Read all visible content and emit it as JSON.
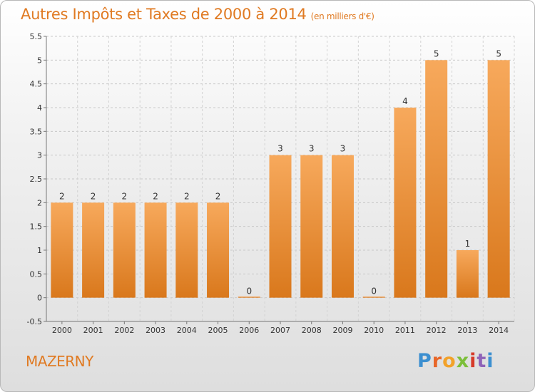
{
  "title": {
    "main": "Autres Impôts et Taxes de 2000 à 2014",
    "unit": "(en milliers d'€)"
  },
  "footer": {
    "city": "MAZERNY",
    "brand_letters": [
      "P",
      "r",
      "o",
      "x",
      "i",
      "t",
      "i"
    ]
  },
  "colors": {
    "bar_light": "#f7a95c",
    "bar_dark": "#d9781c",
    "text_orange": "#e07a22",
    "brand": [
      "#3c8fd0",
      "#e8672a",
      "#f2a22a",
      "#7cbf3a",
      "#d63a2a",
      "#8f63b8",
      "#3c8fd0"
    ]
  },
  "chart_data": {
    "type": "bar",
    "title": "Autres Impôts et Taxes de 2000 à 2014",
    "ylabel": "",
    "xlabel": "",
    "categories": [
      "2000",
      "2001",
      "2002",
      "2003",
      "2004",
      "2005",
      "2006",
      "2007",
      "2008",
      "2009",
      "2010",
      "2011",
      "2012",
      "2013",
      "2014"
    ],
    "values": [
      2,
      2,
      2,
      2,
      2,
      2,
      0,
      3,
      3,
      3,
      0,
      4,
      5,
      1,
      5
    ],
    "value_labels": [
      "2",
      "2",
      "2",
      "2",
      "2",
      "2",
      "0",
      "3",
      "3",
      "3",
      "0",
      "4",
      "5",
      "1",
      "5"
    ],
    "ylim": [
      -0.5,
      5.5
    ],
    "yticks": [
      -0.5,
      0,
      0.5,
      1,
      1.5,
      2,
      2.5,
      3,
      3.5,
      4,
      4.5,
      5,
      5.5
    ],
    "ytick_labels": [
      "-0.5",
      "0",
      "0.5",
      "1",
      "1.5",
      "2",
      "2.5",
      "3",
      "3.5",
      "4",
      "4.5",
      "5",
      "5.5"
    ],
    "grid": "horizontal dashed",
    "legend": "none"
  }
}
